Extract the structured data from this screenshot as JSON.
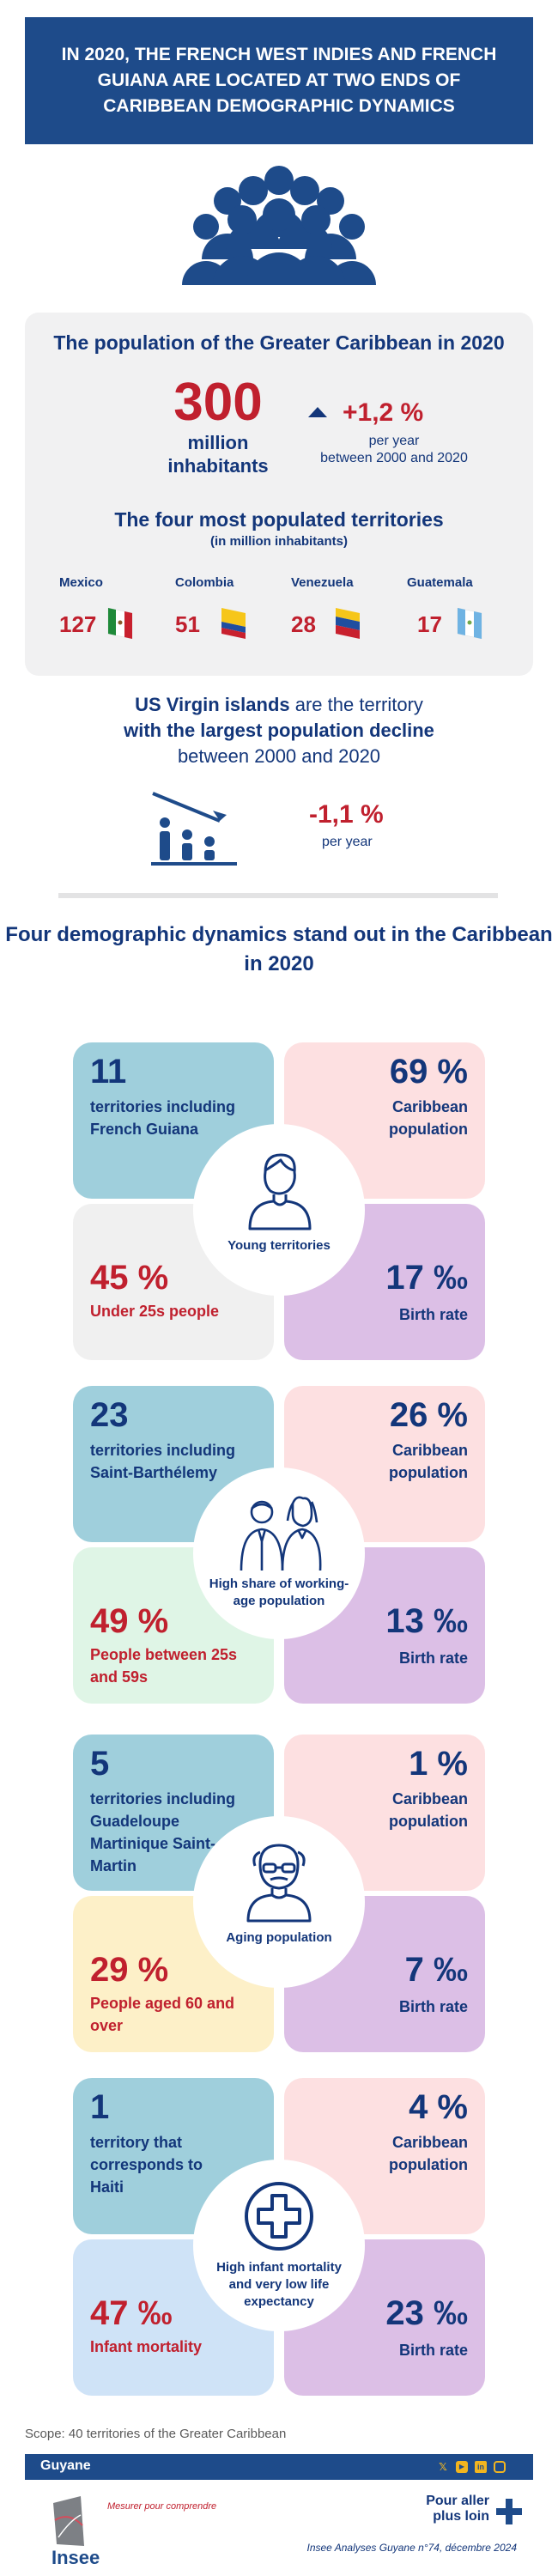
{
  "header": {
    "title": "IN 2020, THE FRENCH WEST INDIES AND FRENCH GUIANA ARE LOCATED AT TWO ENDS OF CARIBBEAN DEMOGRAPHIC DYNAMICS"
  },
  "population": {
    "title": "The population of the Greater Caribbean in 2020",
    "value": "300",
    "unit_line1": "million",
    "unit_line2": "inhabitants",
    "growth": "+1,2 %",
    "growth_sub1": "per year",
    "growth_sub2": "between 2000 and 2020"
  },
  "top_territories": {
    "title": "The four most populated territories",
    "subtitle": "(in million inhabitants)",
    "items": [
      {
        "name": "Mexico",
        "value": "127"
      },
      {
        "name": "Colombia",
        "value": "51"
      },
      {
        "name": "Venezuela",
        "value": "28"
      },
      {
        "name": "Guatemala",
        "value": "17"
      }
    ]
  },
  "decline": {
    "line1_bold": "US Virgin islands",
    "line1_rest": " are the territory",
    "line2": "with the largest population decline",
    "line3": "between 2000 and 2020",
    "value": "-1,1 %",
    "sub": "per year"
  },
  "dynamics_title": "Four demographic dynamics stand out in the Caribbean in 2020",
  "groups": [
    {
      "count": "11",
      "count_text": "territories including French Guiana",
      "pop": "69 %",
      "pop_text": "Caribbean population",
      "stat": "45 %",
      "stat_text": "Under 25s people",
      "birth": "17 ‰",
      "birth_text": "Birth rate",
      "label": "Young territories"
    },
    {
      "count": "23",
      "count_text": "territories including Saint-Barthélemy",
      "pop": "26 %",
      "pop_text": "Caribbean population",
      "stat": "49 %",
      "stat_text": "People between 25s and 59s",
      "birth": "13 ‰",
      "birth_text": "Birth rate",
      "label": "High share of working-age population"
    },
    {
      "count": "5",
      "count_text": "territories including Guadeloupe Martinique Saint-Martin",
      "pop": "1 %",
      "pop_text": "Caribbean population",
      "stat": "29 %",
      "stat_text": "People aged 60 and over",
      "birth": "7 ‰",
      "birth_text": "Birth rate",
      "label": "Aging population"
    },
    {
      "count": "1",
      "count_text": "territory that corresponds to Haiti",
      "pop": "4 %",
      "pop_text": "Caribbean population",
      "stat": "47 ‰",
      "stat_text": "Infant mortality",
      "birth": "23 ‰",
      "birth_text": "Birth rate",
      "label": "High infant mortality and very low life expectancy"
    }
  ],
  "colors": {
    "navy": "#1e4b8a",
    "red": "#c0202e",
    "tile_blue": "#9fcfdc",
    "tile_pink": "#fde0e1",
    "tile_purple": "#dcbfe6",
    "tile_grey": "#f0f0f0",
    "tile_green": "#dff5e6",
    "tile_yellow": "#fdf0c8",
    "tile_lightblue": "#cfe3f7"
  },
  "scope": "Scope: 40 territories of the Greater Caribbean",
  "footer": {
    "region": "Guyane",
    "logo": "Insee",
    "tagline": "Mesurer pour comprendre",
    "more_line1": "Pour aller",
    "more_line2": "plus loin",
    "source": "Insee Analyses Guyane n°74, décembre 2024"
  }
}
